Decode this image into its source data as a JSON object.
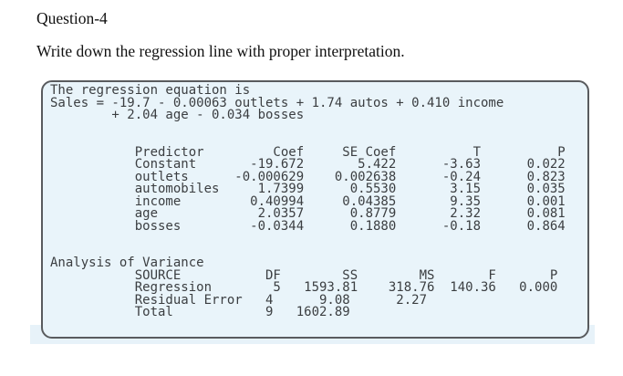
{
  "page": {
    "question_label": "Question-4",
    "prompt": "Write down the regression line with proper interpretation."
  },
  "output": {
    "lines": [
      "The regression equation is",
      "Sales = -19.7 - 0.00063 outlets + 1.74 autos + 0.410 income",
      "        + 2.04 age - 0.034 bosses",
      "",
      "",
      "           Predictor         Coef     SE Coef          T          P",
      "           Constant       -19.672       5.422      -3.63      0.022",
      "           outlets      -0.000629    0.002638      -0.24      0.823",
      "           automobiles     1.7399      0.5530       3.15      0.035",
      "           income         0.40994     0.04385       9.35      0.001",
      "           age             2.0357      0.8779       2.32      0.081",
      "           bosses         -0.0344      0.1880      -0.18      0.864",
      "",
      "",
      "Analysis of Variance",
      "           SOURCE           DF        SS        MS       F       P",
      "           Regression        5   1593.81    318.76  140.36   0.000",
      "           Residual Error   4      9.08      2.27",
      "           Total            9   1602.89"
    ],
    "equation": "Sales = -19.7 - 0.00063 outlets + 1.74 autos + 0.410 income + 2.04 age - 0.034 bosses",
    "regression_table": {
      "headers": [
        "Predictor",
        "Coef",
        "SE Coef",
        "T",
        "P"
      ],
      "rows": [
        [
          "Constant",
          "-19.672",
          "5.422",
          "-3.63",
          "0.022"
        ],
        [
          "outlets",
          "-0.000629",
          "0.002638",
          "-0.24",
          "0.823"
        ],
        [
          "automobiles",
          "1.7399",
          "0.5530",
          "3.15",
          "0.035"
        ],
        [
          "income",
          "0.40994",
          "0.04385",
          "9.35",
          "0.001"
        ],
        [
          "age",
          "2.0357",
          "0.8779",
          "2.32",
          "0.081"
        ],
        [
          "bosses",
          "-0.0344",
          "0.1880",
          "-0.18",
          "0.864"
        ]
      ]
    },
    "anova_table": {
      "title": "Analysis of Variance",
      "headers": [
        "SOURCE",
        "DF",
        "SS",
        "MS",
        "F",
        "P"
      ],
      "rows": [
        [
          "Regression",
          "5",
          "1593.81",
          "318.76",
          "140.36",
          "0.000"
        ],
        [
          "Residual Error",
          "4",
          "9.08",
          "2.27",
          "",
          ""
        ],
        [
          "Total",
          "9",
          "1602.89",
          "",
          "",
          ""
        ]
      ]
    },
    "colors": {
      "box_background": "#e9f4fa",
      "box_border": "#595b5e",
      "mono_text": "#3b3e41"
    }
  }
}
